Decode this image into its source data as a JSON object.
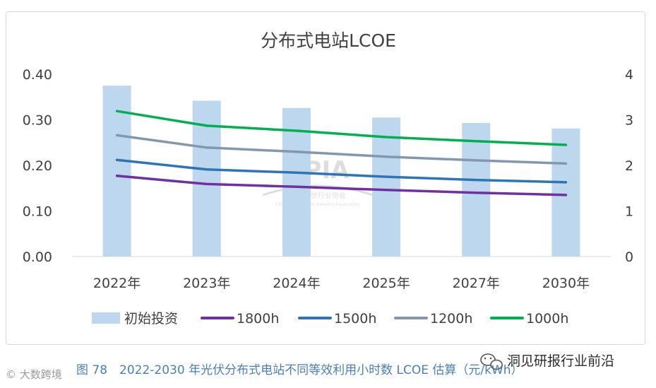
{
  "chart_data": {
    "type": "bar",
    "title": "分布式电站LCOE",
    "categories": [
      "2022年",
      "2023年",
      "2024年",
      "2025年",
      "2027年",
      "2030年"
    ],
    "y_left": {
      "ticks": [
        "0.00",
        "0.10",
        "0.20",
        "0.30",
        "0.40"
      ],
      "range": [
        0,
        0.4
      ]
    },
    "y_right": {
      "ticks": [
        "0",
        "1",
        "2",
        "3",
        "4"
      ],
      "range": [
        0,
        4
      ]
    },
    "bar_series": {
      "name": "初始投资",
      "axis": "right",
      "color": "#bdd7ee",
      "values": [
        3.75,
        3.42,
        3.26,
        3.05,
        2.93,
        2.81
      ]
    },
    "series": [
      {
        "name": "1800h",
        "type": "line",
        "axis": "left",
        "color": "#7030a0",
        "values": [
          0.177,
          0.159,
          0.153,
          0.146,
          0.14,
          0.135
        ]
      },
      {
        "name": "1500h",
        "type": "line",
        "axis": "left",
        "color": "#2e75b6",
        "values": [
          0.212,
          0.191,
          0.184,
          0.175,
          0.168,
          0.163
        ]
      },
      {
        "name": "1200h",
        "type": "line",
        "axis": "left",
        "color": "#8497b0",
        "values": [
          0.266,
          0.239,
          0.23,
          0.219,
          0.211,
          0.204
        ]
      },
      {
        "name": "1000h",
        "type": "line",
        "axis": "left",
        "color": "#00b050",
        "values": [
          0.319,
          0.287,
          0.276,
          0.262,
          0.253,
          0.245
        ]
      }
    ],
    "legend_position": "bottom",
    "grid": false
  },
  "watermark": {
    "logo": "CPIA",
    "org_cn": "中国光伏行业协会",
    "org_en": "China Photovoltaic Industry Association"
  },
  "caption": "图 78　2022-2030 年光伏分布式电站不同等效利用小时数 LCOE 估算（元/kWh）",
  "brand": "洞见研报行业前沿",
  "corner_mark": "© 大数跨境"
}
